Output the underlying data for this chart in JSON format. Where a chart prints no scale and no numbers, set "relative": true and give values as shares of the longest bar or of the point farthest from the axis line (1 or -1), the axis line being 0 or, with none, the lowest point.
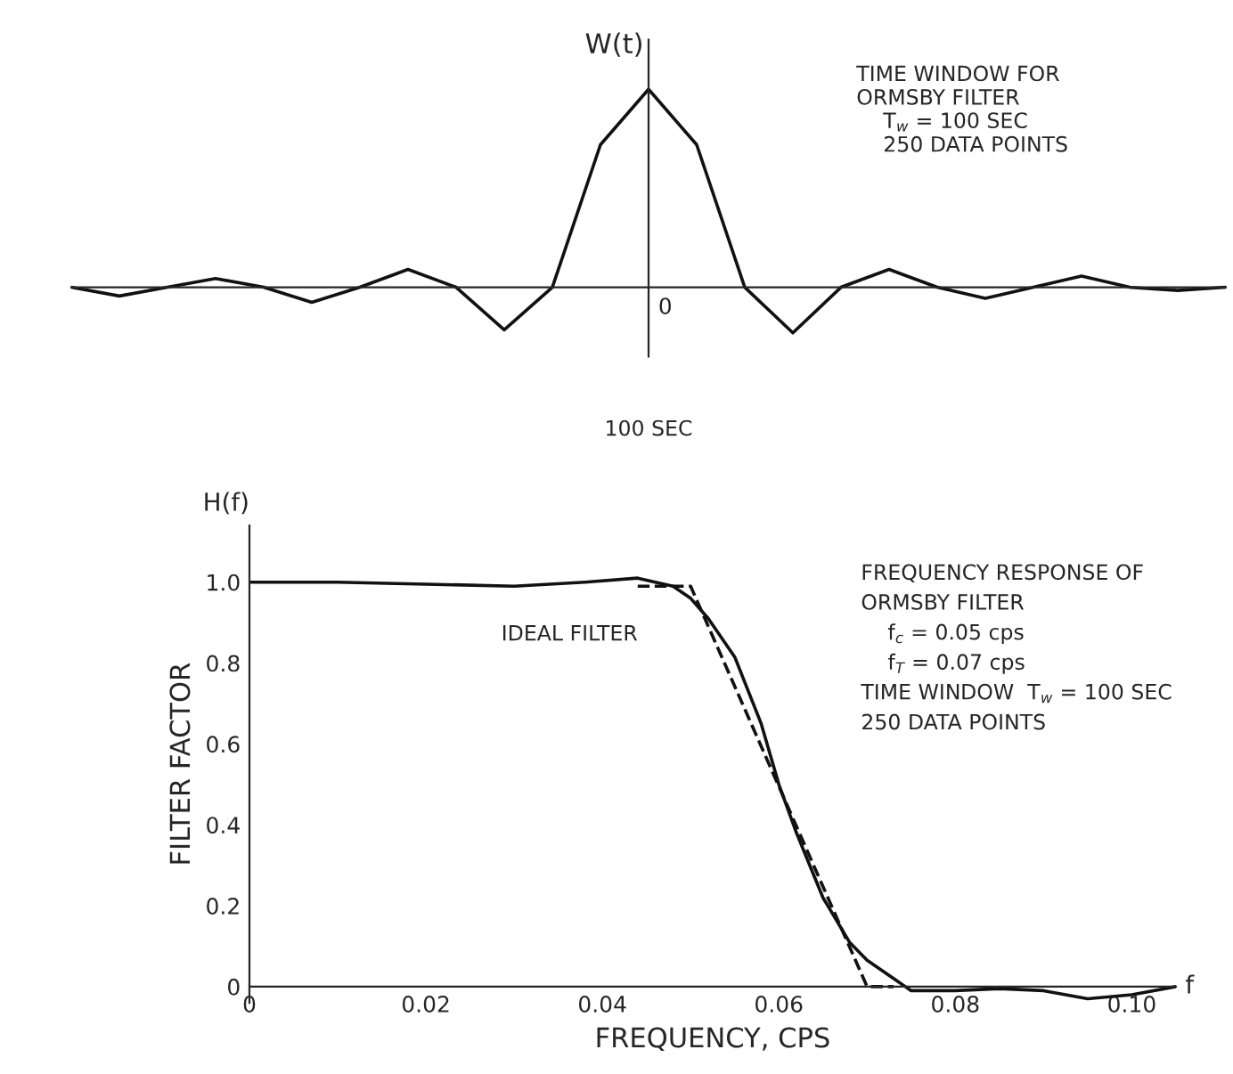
{
  "chart_data": [
    {
      "type": "line",
      "relative": true,
      "ylabel": "W(t)",
      "categories": [
        null,
        null,
        null,
        null,
        null,
        null,
        null,
        null,
        null,
        null,
        null,
        null,
        null,
        null,
        null,
        null,
        null,
        null,
        null,
        null,
        null,
        null,
        null,
        null,
        null
      ],
      "series": [
        {
          "color": "#111111",
          "values": [
            0,
            -0.044,
            0,
            0.044,
            0,
            -0.076,
            0,
            0.09,
            0,
            -0.215,
            0,
            0.72,
            1,
            0.72,
            0,
            -0.23,
            0,
            0.09,
            0,
            -0.056,
            0,
            0.056,
            0,
            -0.016,
            0
          ]
        }
      ],
      "annotations": [
        "TIME WINDOW FOR\nORMSBY FILTER\n    T$_{w}$ = 100 SEC\n    250 DATA POINTS",
        "100 SEC",
        "0"
      ]
    },
    {
      "type": "line",
      "ylabel": "FILTER FACTOR",
      "xlabel": "FREQUENCY, CPS",
      "xlim": [
        0,
        0.105
      ],
      "ylim": [
        -0.04,
        1.14
      ],
      "xticks": [
        0,
        0.02,
        0.04,
        0.06,
        0.08,
        {
          "value": 0.1,
          "label": "0.10"
        }
      ],
      "yticks": [
        0,
        0.2,
        0.4,
        0.6,
        0.8,
        {
          "value": 1.0,
          "label": "1.0"
        }
      ],
      "series": [
        {
          "color": "#111111",
          "line_style": "solid",
          "x": [
            0,
            0.01,
            0.02,
            0.03,
            0.038,
            0.044,
            0.048,
            0.05,
            0.052,
            0.055,
            0.058,
            0.06,
            0.062,
            0.065,
            0.068,
            0.07,
            0.073,
            0.075,
            0.08,
            0.085,
            0.09,
            0.095,
            0.1,
            0.105
          ],
          "values": [
            1,
            1,
            0.995,
            0.99,
            1,
            1.01,
            0.99,
            0.96,
            0.91,
            0.815,
            0.65,
            0.5,
            0.38,
            0.22,
            0.11,
            0.065,
            0.02,
            -0.01,
            -0.01,
            -0.005,
            -0.01,
            -0.03,
            -0.02,
            0
          ]
        },
        {
          "color": "#111111",
          "line_style": "dashed",
          "x": [
            0.044,
            0.05,
            0.07,
            0.073
          ],
          "values": [
            0.99,
            0.99,
            0,
            0
          ]
        }
      ],
      "annotations": [
        {
          "text": "IDEAL FILTER",
          "x": 0.05,
          "y": 0.94
        },
        "H(f)",
        "f",
        "FREQUENCY RESPONSE OF\nORMSBY FILTER\n    f$_{c}$ = 0.05 cps\n    f$_{T}$ = 0.07 cps\nTIME WINDOW  T$_{w}$ = 100 SEC\n250 DATA POINTS"
      ]
    }
  ]
}
